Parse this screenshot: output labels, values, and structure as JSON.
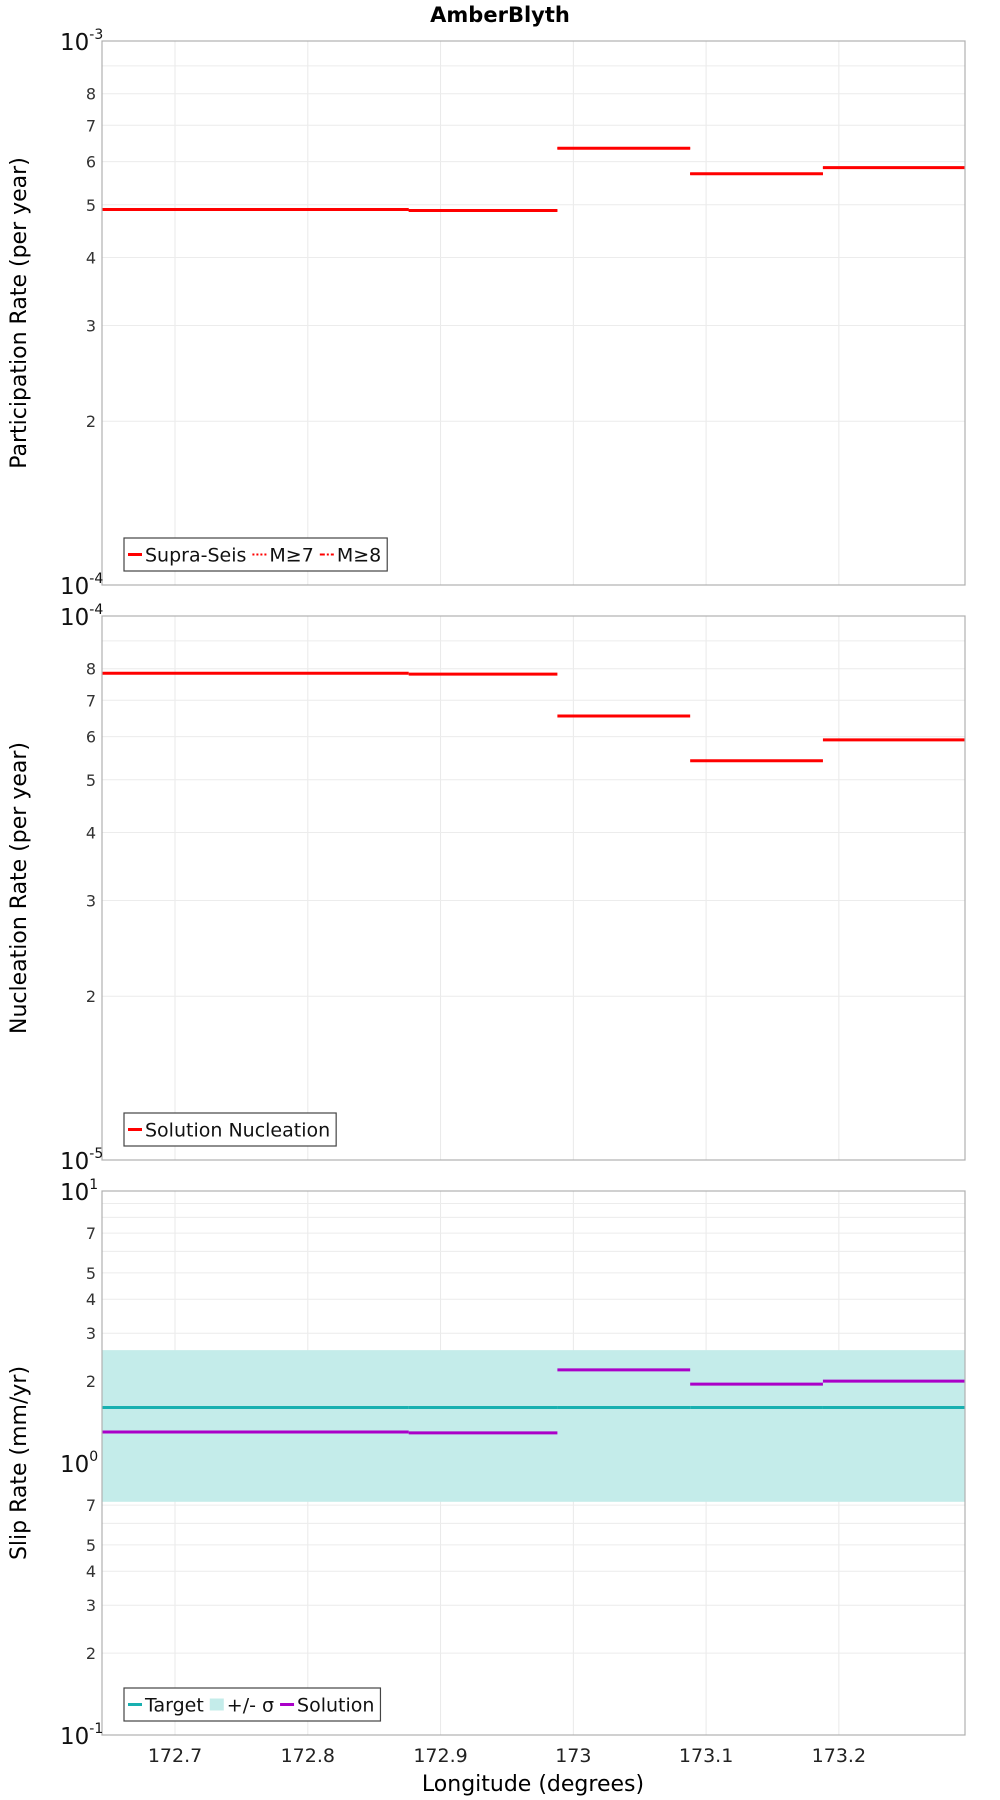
{
  "title": "AmberBlyth",
  "xlabel": "Longitude (degrees)",
  "x_ticks": [
    "172.7",
    "172.8",
    "172.9",
    "173",
    "173.1",
    "173.2"
  ],
  "colors": {
    "red": "#ff0000",
    "teal": "#18b0b0",
    "band": "#c4ecea",
    "purple": "#aa00c8"
  },
  "chart_data": [
    {
      "type": "line",
      "step": true,
      "ylabel": "Participation Rate (per year)",
      "yscale": "log",
      "xlim": [
        172.645,
        173.295
      ],
      "ylim": [
        0.0001,
        0.001
      ],
      "y_decade_labels": [
        {
          "base": "10",
          "exp": "-3"
        },
        {
          "base": "10",
          "exp": "-4"
        }
      ],
      "y_minor_labels": [
        "8",
        "7",
        "6",
        "5",
        "4",
        "3",
        "2"
      ],
      "legend": {
        "position": "bottom-left",
        "entries": [
          {
            "label": "Supra-Seis",
            "style": "solid"
          },
          {
            "label": "M≥7",
            "style": "dotted"
          },
          {
            "label": "M≥8",
            "style": "dashdot"
          }
        ]
      },
      "segments": [
        [
          172.645,
          172.764
        ],
        [
          172.764,
          172.876
        ],
        [
          172.876,
          172.988
        ],
        [
          172.988,
          173.088
        ],
        [
          173.088,
          173.188
        ],
        [
          173.188,
          173.295
        ]
      ],
      "series": [
        {
          "name": "Supra-Seis",
          "values": [
            0.00049,
            0.00049,
            0.000488,
            0.000635,
            0.00057,
            0.000585
          ]
        },
        {
          "name": "M≥7",
          "values": [
            0.00049,
            0.00049,
            0.000488,
            0.000635,
            0.00057,
            0.000585
          ]
        },
        {
          "name": "M≥8",
          "values": [
            0.00049,
            0.00049,
            0.000488,
            0.000635,
            0.00057,
            0.000585
          ]
        }
      ]
    },
    {
      "type": "line",
      "step": true,
      "ylabel": "Nucleation Rate (per year)",
      "yscale": "log",
      "xlim": [
        172.645,
        173.295
      ],
      "ylim": [
        1e-05,
        0.0001
      ],
      "y_decade_labels": [
        {
          "base": "10",
          "exp": "-4"
        },
        {
          "base": "10",
          "exp": "-5"
        }
      ],
      "y_minor_labels": [
        "8",
        "7",
        "6",
        "5",
        "4",
        "3",
        "2"
      ],
      "legend": {
        "position": "bottom-left",
        "entries": [
          {
            "label": "Solution Nucleation",
            "style": "solid"
          }
        ]
      },
      "segments": [
        [
          172.645,
          172.764
        ],
        [
          172.764,
          172.876
        ],
        [
          172.876,
          172.988
        ],
        [
          172.988,
          173.088
        ],
        [
          173.088,
          173.188
        ],
        [
          173.188,
          173.295
        ]
      ],
      "series": [
        {
          "name": "Solution Nucleation",
          "values": [
            7.85e-05,
            7.85e-05,
            7.82e-05,
            6.55e-05,
            5.42e-05,
            5.92e-05
          ]
        }
      ]
    },
    {
      "type": "line",
      "step": true,
      "ylabel": "Slip Rate (mm/yr)",
      "yscale": "log",
      "xlim": [
        172.645,
        173.295
      ],
      "ylim": [
        0.1,
        10
      ],
      "y_decade_labels": [
        {
          "base": "10",
          "exp": "1"
        },
        {
          "base": "10",
          "exp": "0"
        },
        {
          "base": "10",
          "exp": "-1"
        }
      ],
      "y_minor_labels": [
        "7",
        "5",
        "4",
        "3",
        "2",
        "7",
        "5",
        "4",
        "3",
        "2"
      ],
      "legend": {
        "position": "bottom-left",
        "entries": [
          {
            "label": "Target",
            "style": "solid"
          },
          {
            "label": "+/- σ",
            "style": "band"
          },
          {
            "label": "Solution",
            "style": "solid"
          }
        ]
      },
      "segments": [
        [
          172.645,
          172.764
        ],
        [
          172.764,
          172.876
        ],
        [
          172.876,
          172.988
        ],
        [
          172.988,
          173.088
        ],
        [
          173.088,
          173.188
        ],
        [
          173.188,
          173.295
        ]
      ],
      "band": {
        "name": "+/- σ",
        "low": 0.72,
        "high": 2.6
      },
      "series": [
        {
          "name": "Target",
          "values": [
            1.6,
            1.6,
            1.6,
            1.6,
            1.6,
            1.6
          ]
        },
        {
          "name": "Solution",
          "values": [
            1.3,
            1.3,
            1.29,
            2.2,
            1.95,
            2.0
          ]
        }
      ]
    }
  ]
}
